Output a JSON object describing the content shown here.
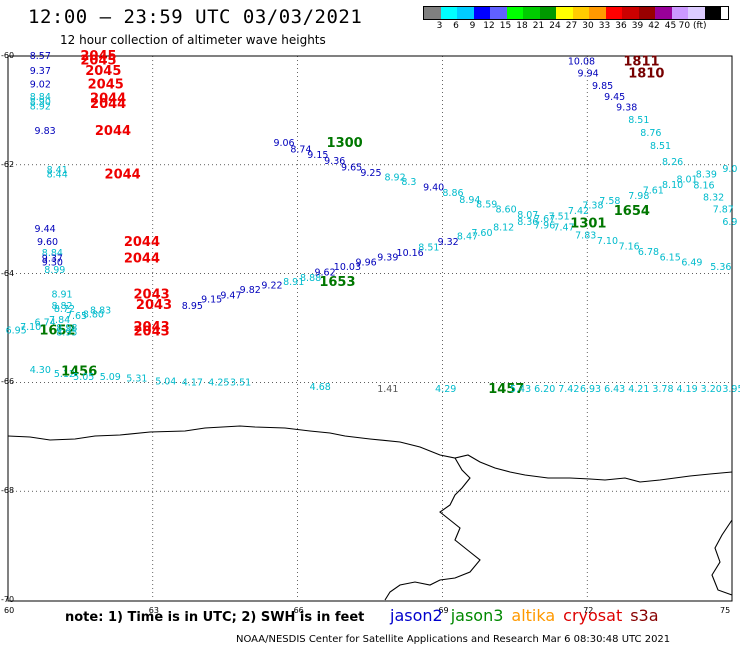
{
  "title": "12:00 – 23:59 UTC 03/03/2021",
  "subtitle": "12 hour collection of altimeter wave heights",
  "legend": {
    "colors": [
      "#808080",
      "#00ffff",
      "#00ccff",
      "#0000ff",
      "#6060ff",
      "#00ff00",
      "#00cc00",
      "#009900",
      "#ffff00",
      "#ffcc00",
      "#ff9900",
      "#ff0000",
      "#cc0000",
      "#990000",
      "#990099",
      "#cc99ff",
      "#ddccff",
      "#000000"
    ],
    "ticks": [
      "3",
      "6",
      "9",
      "12",
      "15",
      "18",
      "21",
      "24",
      "27",
      "30",
      "33",
      "36",
      "39",
      "42",
      "45",
      "70 (ft)"
    ]
  },
  "axes": {
    "lon_labels": [
      "60",
      "63",
      "66",
      "69",
      "72",
      "75"
    ],
    "lat_labels": [
      "-60",
      "-62",
      "-64",
      "-66",
      "-68",
      "-70"
    ],
    "lon_values": [
      60,
      63,
      66,
      69,
      72,
      75
    ],
    "lat_values": [
      -60,
      -62,
      -64,
      -66,
      -68,
      -70
    ]
  },
  "note": "note: 1) Time is in UTC; 2) SWH is in feet",
  "satellites": [
    {
      "name": "jason2",
      "color": "#0000cc"
    },
    {
      "name": "jason3",
      "color": "#008800"
    },
    {
      "name": "altika",
      "color": "#ff9900"
    },
    {
      "name": "cryosat",
      "color": "#dd0000"
    },
    {
      "name": "s3a",
      "color": "#880000"
    }
  ],
  "credit": "NOAA/NESDIS Center for Satellite Applications and Research   Mar  6 08:30:48 UTC 2021",
  "colors": {
    "blue": "#0000bb",
    "cyan": "#00bbcc",
    "red": "#ee0000",
    "green": "#007700",
    "darkred": "#770000",
    "gray": "#555555"
  },
  "map_labels": [
    {
      "t": "8.57",
      "c": "blue",
      "lon": 60.45,
      "lat": -60.0
    },
    {
      "t": "9.37",
      "c": "blue",
      "lon": 60.45,
      "lat": -60.28
    },
    {
      "t": "9.02",
      "c": "blue",
      "lon": 60.45,
      "lat": -60.52
    },
    {
      "t": "8.84",
      "c": "cyan",
      "lon": 60.45,
      "lat": -60.75
    },
    {
      "t": "8.90",
      "c": "cyan",
      "lon": 60.45,
      "lat": -60.85
    },
    {
      "t": "8.92",
      "c": "cyan",
      "lon": 60.45,
      "lat": -60.93
    },
    {
      "t": "9.83",
      "c": "blue",
      "lon": 60.55,
      "lat": -61.38
    },
    {
      "t": "2045",
      "c": "red",
      "lon": 61.5,
      "lat": -60.0,
      "s": 13
    },
    {
      "t": "2045",
      "c": "red",
      "lon": 61.5,
      "lat": -60.08,
      "s": 13
    },
    {
      "t": "2045",
      "c": "red",
      "lon": 61.6,
      "lat": -60.28,
      "s": 13
    },
    {
      "t": "2045",
      "c": "red",
      "lon": 61.65,
      "lat": -60.52,
      "s": 13
    },
    {
      "t": "2044",
      "c": "red",
      "lon": 61.7,
      "lat": -60.78,
      "s": 13
    },
    {
      "t": "2044",
      "c": "red",
      "lon": 61.7,
      "lat": -60.88,
      "s": 13
    },
    {
      "t": "2044",
      "c": "red",
      "lon": 61.8,
      "lat": -61.38,
      "s": 13
    },
    {
      "t": "8.41",
      "c": "cyan",
      "lon": 60.8,
      "lat": -62.1
    },
    {
      "t": "8.44",
      "c": "cyan",
      "lon": 60.8,
      "lat": -62.18
    },
    {
      "t": "2044",
      "c": "red",
      "lon": 62.0,
      "lat": -62.18,
      "s": 13
    },
    {
      "t": "9.06",
      "c": "blue",
      "lon": 65.5,
      "lat": -61.6
    },
    {
      "t": "1300",
      "c": "green",
      "lon": 66.6,
      "lat": -61.6,
      "s": 13
    },
    {
      "t": "8.74",
      "c": "blue",
      "lon": 65.85,
      "lat": -61.72
    },
    {
      "t": "9.15",
      "c": "blue",
      "lon": 66.2,
      "lat": -61.82
    },
    {
      "t": "9.36",
      "c": "blue",
      "lon": 66.55,
      "lat": -61.93
    },
    {
      "t": "9.65",
      "c": "blue",
      "lon": 66.9,
      "lat": -62.05
    },
    {
      "t": "9.25",
      "c": "blue",
      "lon": 67.3,
      "lat": -62.15
    },
    {
      "t": "8.92",
      "c": "cyan",
      "lon": 67.8,
      "lat": -62.23
    },
    {
      "t": "8.3",
      "c": "cyan",
      "lon": 68.15,
      "lat": -62.32
    },
    {
      "t": "9.40",
      "c": "blue",
      "lon": 68.6,
      "lat": -62.42
    },
    {
      "t": "8.86",
      "c": "cyan",
      "lon": 69.0,
      "lat": -62.52
    },
    {
      "t": "8.94",
      "c": "cyan",
      "lon": 69.35,
      "lat": -62.65
    },
    {
      "t": "8.59",
      "c": "cyan",
      "lon": 69.7,
      "lat": -62.73
    },
    {
      "t": "8.60",
      "c": "cyan",
      "lon": 70.1,
      "lat": -62.82
    },
    {
      "t": "8.07",
      "c": "cyan",
      "lon": 70.55,
      "lat": -62.92
    },
    {
      "t": "7.67",
      "c": "cyan",
      "lon": 70.9,
      "lat": -63.0
    },
    {
      "t": "7.51",
      "c": "cyan",
      "lon": 71.2,
      "lat": -62.95
    },
    {
      "t": "7.42",
      "c": "cyan",
      "lon": 71.6,
      "lat": -62.85
    },
    {
      "t": "7.38",
      "c": "cyan",
      "lon": 71.9,
      "lat": -62.75
    },
    {
      "t": "7.58",
      "c": "cyan",
      "lon": 72.25,
      "lat": -62.67
    },
    {
      "t": "1654",
      "c": "green",
      "lon": 72.55,
      "lat": -62.85,
      "s": 13
    },
    {
      "t": "7.98",
      "c": "cyan",
      "lon": 72.85,
      "lat": -62.57
    },
    {
      "t": "7.61",
      "c": "cyan",
      "lon": 73.15,
      "lat": -62.47
    },
    {
      "t": "8.10",
      "c": "cyan",
      "lon": 73.55,
      "lat": -62.37
    },
    {
      "t": "8.01",
      "c": "cyan",
      "lon": 73.85,
      "lat": -62.27
    },
    {
      "t": "8.39",
      "c": "cyan",
      "lon": 74.25,
      "lat": -62.18
    },
    {
      "t": "9.0",
      "c": "cyan",
      "lon": 74.8,
      "lat": -62.08
    },
    {
      "t": "10.08",
      "c": "blue",
      "lon": 71.6,
      "lat": -60.1
    },
    {
      "t": "1811",
      "c": "darkred",
      "lon": 72.75,
      "lat": -60.1,
      "s": 13
    },
    {
      "t": "9.94",
      "c": "blue",
      "lon": 71.8,
      "lat": -60.32
    },
    {
      "t": "1810",
      "c": "darkred",
      "lon": 72.85,
      "lat": -60.32,
      "s": 13
    },
    {
      "t": "9.85",
      "c": "blue",
      "lon": 72.1,
      "lat": -60.55
    },
    {
      "t": "9.45",
      "c": "blue",
      "lon": 72.35,
      "lat": -60.75
    },
    {
      "t": "9.38",
      "c": "blue",
      "lon": 72.6,
      "lat": -60.95
    },
    {
      "t": "8.51",
      "c": "cyan",
      "lon": 72.85,
      "lat": -61.18
    },
    {
      "t": "8.76",
      "c": "cyan",
      "lon": 73.1,
      "lat": -61.42
    },
    {
      "t": "8.51",
      "c": "cyan",
      "lon": 73.3,
      "lat": -61.65
    },
    {
      "t": "8.26",
      "c": "cyan",
      "lon": 73.55,
      "lat": -61.95
    },
    {
      "t": "8.16",
      "c": "cyan",
      "lon": 74.2,
      "lat": -62.38
    },
    {
      "t": "8.32",
      "c": "cyan",
      "lon": 74.4,
      "lat": -62.6
    },
    {
      "t": "7.87",
      "c": "cyan",
      "lon": 74.6,
      "lat": -62.82
    },
    {
      "t": "6.9",
      "c": "cyan",
      "lon": 74.8,
      "lat": -63.05
    },
    {
      "t": "9.44",
      "c": "blue",
      "lon": 60.55,
      "lat": -63.18
    },
    {
      "t": "9.60",
      "c": "blue",
      "lon": 60.6,
      "lat": -63.42
    },
    {
      "t": "8.84",
      "c": "cyan",
      "lon": 60.7,
      "lat": -63.62
    },
    {
      "t": "9.37",
      "c": "blue",
      "lon": 60.7,
      "lat": -63.72
    },
    {
      "t": "9.30",
      "c": "blue",
      "lon": 60.7,
      "lat": -63.8
    },
    {
      "t": "8.99",
      "c": "cyan",
      "lon": 60.75,
      "lat": -63.93
    },
    {
      "t": "2044",
      "c": "red",
      "lon": 62.4,
      "lat": -63.42,
      "s": 13
    },
    {
      "t": "2044",
      "c": "red",
      "lon": 62.4,
      "lat": -63.72,
      "s": 13
    },
    {
      "t": "8.91",
      "c": "cyan",
      "lon": 60.9,
      "lat": -64.38
    },
    {
      "t": "8.82",
      "c": "cyan",
      "lon": 60.9,
      "lat": -64.6
    },
    {
      "t": "8.72",
      "c": "cyan",
      "lon": 60.95,
      "lat": -64.65
    },
    {
      "t": "7.65",
      "c": "cyan",
      "lon": 61.2,
      "lat": -64.78
    },
    {
      "t": "7.84",
      "c": "cyan",
      "lon": 60.85,
      "lat": -64.85
    },
    {
      "t": "6.74",
      "c": "cyan",
      "lon": 60.55,
      "lat": -64.9
    },
    {
      "t": "7.10",
      "c": "cyan",
      "lon": 60.25,
      "lat": -64.98
    },
    {
      "t": "6.95",
      "c": "cyan",
      "lon": 59.95,
      "lat": -65.05
    },
    {
      "t": "1652",
      "c": "green",
      "lon": 60.65,
      "lat": -65.05,
      "s": 13
    },
    {
      "t": "8.98",
      "c": "cyan",
      "lon": 61.0,
      "lat": -65.0
    },
    {
      "t": "8.95",
      "c": "cyan",
      "lon": 61.0,
      "lat": -65.08
    },
    {
      "t": "8.80",
      "c": "cyan",
      "lon": 61.55,
      "lat": -64.75
    },
    {
      "t": "8.83",
      "c": "cyan",
      "lon": 61.7,
      "lat": -64.68
    },
    {
      "t": "2043",
      "c": "red",
      "lon": 62.6,
      "lat": -64.38,
      "s": 13
    },
    {
      "t": "2043",
      "c": "red",
      "lon": 62.65,
      "lat": -64.58,
      "s": 13
    },
    {
      "t": "2043",
      "c": "red",
      "lon": 62.6,
      "lat": -64.98,
      "s": 13
    },
    {
      "t": "2043",
      "c": "red",
      "lon": 62.6,
      "lat": -65.06,
      "s": 13
    },
    {
      "t": "8.95",
      "c": "blue",
      "lon": 63.6,
      "lat": -64.6
    },
    {
      "t": "9.15",
      "c": "blue",
      "lon": 64.0,
      "lat": -64.48
    },
    {
      "t": "9.47",
      "c": "blue",
      "lon": 64.4,
      "lat": -64.4
    },
    {
      "t": "9.82",
      "c": "blue",
      "lon": 64.8,
      "lat": -64.3
    },
    {
      "t": "9.22",
      "c": "blue",
      "lon": 65.25,
      "lat": -64.22
    },
    {
      "t": "8.91",
      "c": "cyan",
      "lon": 65.7,
      "lat": -64.15
    },
    {
      "t": "8.88",
      "c": "cyan",
      "lon": 66.05,
      "lat": -64.08
    },
    {
      "t": "1653",
      "c": "green",
      "lon": 66.45,
      "lat": -64.15,
      "s": 13
    },
    {
      "t": "9.62",
      "c": "blue",
      "lon": 66.35,
      "lat": -63.98
    },
    {
      "t": "10.03",
      "c": "blue",
      "lon": 66.75,
      "lat": -63.88
    },
    {
      "t": "9.96",
      "c": "blue",
      "lon": 67.2,
      "lat": -63.8
    },
    {
      "t": "9.39",
      "c": "blue",
      "lon": 67.65,
      "lat": -63.7
    },
    {
      "t": "10.16",
      "c": "blue",
      "lon": 68.05,
      "lat": -63.62
    },
    {
      "t": "8.51",
      "c": "cyan",
      "lon": 68.5,
      "lat": -63.52
    },
    {
      "t": "9.32",
      "c": "blue",
      "lon": 68.9,
      "lat": -63.42
    },
    {
      "t": "8.47",
      "c": "cyan",
      "lon": 69.3,
      "lat": -63.32
    },
    {
      "t": "7.60",
      "c": "cyan",
      "lon": 69.6,
      "lat": -63.25
    },
    {
      "t": "8.12",
      "c": "cyan",
      "lon": 70.05,
      "lat": -63.15
    },
    {
      "t": "8.36",
      "c": "cyan",
      "lon": 70.55,
      "lat": -63.05
    },
    {
      "t": "7.96",
      "c": "cyan",
      "lon": 70.9,
      "lat": -63.12
    },
    {
      "t": "7.47",
      "c": "cyan",
      "lon": 71.3,
      "lat": -63.15
    },
    {
      "t": "1301",
      "c": "green",
      "lon": 71.65,
      "lat": -63.08,
      "s": 13
    },
    {
      "t": "7.83",
      "c": "cyan",
      "lon": 71.75,
      "lat": -63.3
    },
    {
      "t": "7.10",
      "c": "cyan",
      "lon": 72.2,
      "lat": -63.4
    },
    {
      "t": "7.16",
      "c": "cyan",
      "lon": 72.65,
      "lat": -63.5
    },
    {
      "t": "6.78",
      "c": "cyan",
      "lon": 73.05,
      "lat": -63.6
    },
    {
      "t": "6.15",
      "c": "cyan",
      "lon": 73.5,
      "lat": -63.7
    },
    {
      "t": "6.49",
      "c": "cyan",
      "lon": 73.95,
      "lat": -63.8
    },
    {
      "t": "5.36",
      "c": "cyan",
      "lon": 74.55,
      "lat": -63.88
    },
    {
      "t": "4.30",
      "c": "cyan",
      "lon": 60.45,
      "lat": -65.77
    },
    {
      "t": "5.12",
      "c": "cyan",
      "lon": 60.95,
      "lat": -65.85
    },
    {
      "t": "1456",
      "c": "green",
      "lon": 61.1,
      "lat": -65.8,
      "s": 13
    },
    {
      "t": "5.05",
      "c": "cyan",
      "lon": 61.35,
      "lat": -65.9
    },
    {
      "t": "5.09",
      "c": "cyan",
      "lon": 61.9,
      "lat": -65.9
    },
    {
      "t": "5.31",
      "c": "cyan",
      "lon": 62.45,
      "lat": -65.93
    },
    {
      "t": "5.04",
      "c": "cyan",
      "lon": 63.05,
      "lat": -65.98
    },
    {
      "t": "4.17",
      "c": "cyan",
      "lon": 63.6,
      "lat": -66.0
    },
    {
      "t": "4.25",
      "c": "cyan",
      "lon": 64.15,
      "lat": -66.0
    },
    {
      "t": "3.51",
      "c": "cyan",
      "lon": 64.6,
      "lat": -66.0
    },
    {
      "t": "4.68",
      "c": "cyan",
      "lon": 66.25,
      "lat": -66.08
    },
    {
      "t": "1.41",
      "c": "gray",
      "lon": 67.65,
      "lat": -66.12
    },
    {
      "t": "4.29",
      "c": "cyan",
      "lon": 68.85,
      "lat": -66.12
    },
    {
      "t": "1457",
      "c": "green",
      "lon": 69.95,
      "lat": -66.12,
      "s": 13
    },
    {
      "t": "5.43",
      "c": "cyan",
      "lon": 70.4,
      "lat": -66.12
    },
    {
      "t": "6.20",
      "c": "cyan",
      "lon": 70.9,
      "lat": -66.12
    },
    {
      "t": "7.42",
      "c": "cyan",
      "lon": 71.4,
      "lat": -66.12
    },
    {
      "t": "6.93",
      "c": "cyan",
      "lon": 71.85,
      "lat": -66.12
    },
    {
      "t": "6.43",
      "c": "cyan",
      "lon": 72.35,
      "lat": -66.12
    },
    {
      "t": "4.21",
      "c": "cyan",
      "lon": 72.85,
      "lat": -66.12
    },
    {
      "t": "3.78",
      "c": "cyan",
      "lon": 73.35,
      "lat": -66.12
    },
    {
      "t": "4.19",
      "c": "cyan",
      "lon": 73.85,
      "lat": -66.12
    },
    {
      "t": "3.20",
      "c": "cyan",
      "lon": 74.35,
      "lat": -66.12
    },
    {
      "t": "3.95",
      "c": "cyan",
      "lon": 74.8,
      "lat": -66.12
    }
  ]
}
